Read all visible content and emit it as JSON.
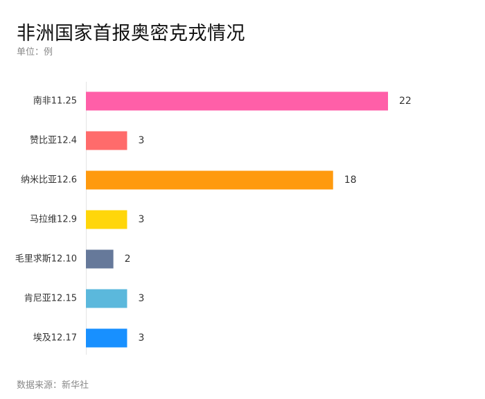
{
  "chart_data": {
    "type": "bar",
    "orientation": "horizontal",
    "title": "非洲国家首报奥密克戎情况",
    "subtitle": "单位：例",
    "source": "数据来源：新华社",
    "categories": [
      "南非11.25",
      "赞比亚12.4",
      "纳米比亚12.6",
      "马拉维12.9",
      "毛里求斯12.10",
      "肯尼亚12.15",
      "埃及12.17"
    ],
    "values": [
      22,
      3,
      18,
      3,
      2,
      3,
      3
    ],
    "value_labels": [
      "22",
      "3",
      "18",
      "3",
      "2",
      "3",
      "3"
    ],
    "colors": [
      "#ff5fa8",
      "#ff6b6b",
      "#ff9a0e",
      "#ffd60a",
      "#66799a",
      "#5bb8dc",
      "#1890ff"
    ],
    "xlim": [
      0,
      22
    ],
    "grid": false,
    "legend": "none"
  }
}
